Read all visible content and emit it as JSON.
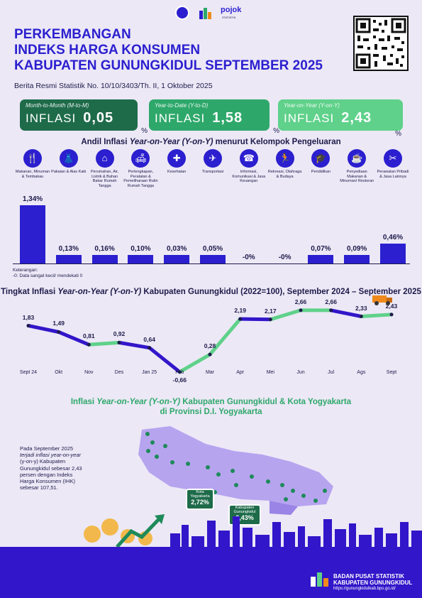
{
  "header": {
    "title_line1": "PERKEMBANGAN",
    "title_line2": "INDEKS HARGA KONSUMEN",
    "title_line3": "KABUPATEN GUNUNGKIDUL SEPTEMBER 2025",
    "reference": "Berita Resmi Statistik No. 10/10/3403/Th. II, 1 Oktober 2025",
    "logo_text": "pojok",
    "logo_sub": "STATISTIK"
  },
  "summary": [
    {
      "label": "Month-to-Month (M-to-M)",
      "word": "INFLASI",
      "value": "0,05",
      "unit": "%",
      "color": "#1e6b4a"
    },
    {
      "label": "Year-to-Date (Y-to-D)",
      "word": "INFLASI",
      "value": "1,58",
      "unit": "%",
      "color": "#2ea86a"
    },
    {
      "label": "Year-on-Year (Y-on-Y)",
      "word": "INFLASI",
      "value": "2,43",
      "unit": "%",
      "color": "#5fd18a"
    }
  ],
  "andil": {
    "title_a": "Andil Inflasi ",
    "title_b": "Year-on-Year (Y-on-Y)",
    "title_c": " menurut Kelompok Pengeluaran",
    "note_line1": "Keterangan:",
    "note_line2": "-0: Data sangat kecil/ mendekati 0"
  },
  "chart_data": [
    {
      "type": "bar",
      "title": "Andil Inflasi Year-on-Year (Y-on-Y) menurut Kelompok Pengeluaran",
      "categories": [
        "Makanan, Minuman & Tembakau",
        "Pakaian & Alas Kaki",
        "Perumahan, Air, Listrik & Bahan Bakar Rumah Tangga",
        "Perlengkapan, Peralatan & Pemeliharaan Rutin Rumah Tangga",
        "Kesehatan",
        "Transportasi",
        "Informasi, Komunikasi & Jasa Keuangan",
        "Rekreasi, Olahraga & Budaya",
        "Pendidikan",
        "Penyediaan Makanan & Minuman/ Restoran",
        "Perawatan Pribadi & Jasa Lainnya"
      ],
      "values": [
        1.34,
        0.13,
        0.16,
        0.1,
        0.03,
        0.05,
        0,
        0,
        0.07,
        0.09,
        0.46
      ],
      "labels": [
        "1,34%",
        "0,13%",
        "0,16%",
        "0,10%",
        "0,03%",
        "0,05%",
        "-0%",
        "-0%",
        "0,07%",
        "0,09%",
        "0,46%"
      ],
      "icons": [
        "food-icon",
        "clothing-icon",
        "house-icon",
        "sofa-icon",
        "health-icon",
        "plane-icon",
        "phone-icon",
        "running-icon",
        "graduation-cap-icon",
        "dining-icon",
        "tools-icon"
      ],
      "ylim": [
        0,
        1.4
      ]
    },
    {
      "type": "line",
      "title": "Tingkat Inflasi Year-on-Year (Y-on-Y) Kabupaten Gunungkidul (2022=100), September 2024 – September 2025",
      "x": [
        "Sept 24",
        "Okt",
        "Nov",
        "Des",
        "Jan 25",
        "Feb",
        "Mar",
        "Apr",
        "Mei",
        "Jun",
        "Jul",
        "Ags",
        "Sept"
      ],
      "values": [
        1.83,
        1.49,
        0.81,
        0.92,
        0.64,
        -0.66,
        0.28,
        2.19,
        2.17,
        2.66,
        2.66,
        2.33,
        2.43
      ],
      "labels": [
        "1,83",
        "1,49",
        "0,81",
        "0,92",
        "0,64",
        "-0,66",
        "0,28",
        "2,19",
        "2,17",
        "2,66",
        "2,66",
        "2,33",
        "2,43"
      ],
      "ylim": [
        -0.9,
        3.0
      ]
    }
  ],
  "line_title": {
    "a": "Tingkat Inflasi ",
    "b": "Year-on-Year (Y-on-Y)",
    "c": " Kabupaten Gunungkidul (2022=100), September 2024 – September 2025"
  },
  "map": {
    "title_a": "Inflasi ",
    "title_b": "Year-on-Year (Y-on-Y)",
    "title_c": " Kabupaten Gunungkidul & Kota Yogyakarta",
    "title_line2": "di Provinsi D.I. Yogyakarta",
    "desc_1": "Pada September 2025",
    "desc_2": "terjadi inflasi year-on-year",
    "desc_3": "(y-on-y) Kabupaten",
    "desc_4": "Gunungkidul sebesar 2,43",
    "desc_5": "persen dengan Indeks",
    "desc_6": "Harga Konsumen (IHK)",
    "desc_7": "sebesar 107,51.",
    "city1_name": "Kota Yogyakarta",
    "city1_value": "2,72%",
    "city2_name": "Kabupaten Gunungkidul",
    "city2_value": "2,43%"
  },
  "footer": {
    "org1": "BADAN PUSAT STATISTIK",
    "org2": "KABUPATEN GUNUNGKIDUL",
    "url": "https://gunungkidulkab.bps.go.id/"
  },
  "colors": {
    "primary": "#2b1fcf",
    "green": "#1e6b4a",
    "light_green": "#5fd18a"
  }
}
